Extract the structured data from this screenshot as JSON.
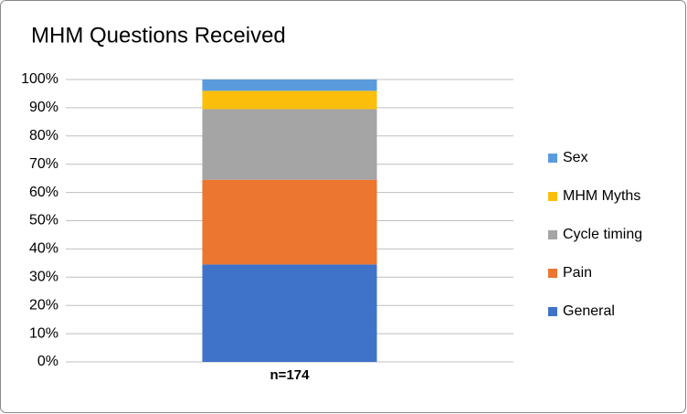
{
  "chart_data": {
    "type": "stacked_bar",
    "title": "MHM Questions Received",
    "categories": [
      "n=174"
    ],
    "series": [
      {
        "name": "General",
        "color": "#3f73c9",
        "values": [
          34.5
        ]
      },
      {
        "name": "Pain",
        "color": "#ec7530",
        "values": [
          30
        ]
      },
      {
        "name": "Cycle timing",
        "color": "#a5a5a5",
        "values": [
          25
        ]
      },
      {
        "name": "MHM Myths",
        "color": "#fbbf0b",
        "values": [
          6.5
        ]
      },
      {
        "name": "Sex",
        "color": "#5a9bdd",
        "values": [
          4
        ]
      }
    ],
    "ylim": [
      0,
      100
    ],
    "yticks": [
      {
        "value": 0,
        "label": "0%"
      },
      {
        "value": 10,
        "label": "10%"
      },
      {
        "value": 20,
        "label": "20%"
      },
      {
        "value": 30,
        "label": "30%"
      },
      {
        "value": 40,
        "label": "40%"
      },
      {
        "value": 50,
        "label": "50%"
      },
      {
        "value": 60,
        "label": "60%"
      },
      {
        "value": 70,
        "label": "70%"
      },
      {
        "value": 80,
        "label": "80%"
      },
      {
        "value": 90,
        "label": "90%"
      },
      {
        "value": 100,
        "label": "100%"
      }
    ],
    "grid": true,
    "legend": "right"
  }
}
